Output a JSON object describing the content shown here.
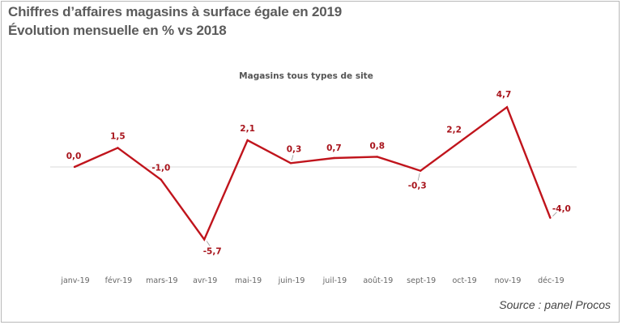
{
  "header": {
    "title": "Chiffres d’affaires magasins à surface égale en 2019",
    "subtitle": "Évolution mensuelle en % vs 2018"
  },
  "source": "Source : panel Procos",
  "colors": {
    "line": "#c0141c",
    "label": "#a8141c",
    "axis": "#d9d9d9",
    "tick_text": "#666666"
  },
  "chart_data": {
    "type": "line",
    "title": "Magasins tous types de site",
    "categories": [
      "janv-19",
      "févr-19",
      "mars-19",
      "avr-19",
      "mai-19",
      "juin-19",
      "juil-19",
      "août-19",
      "sept-19",
      "oct-19",
      "nov-19",
      "déc-19"
    ],
    "series": [
      {
        "values": [
          0.0,
          1.5,
          -1.0,
          -5.7,
          2.1,
          0.3,
          0.7,
          0.8,
          -0.3,
          2.2,
          4.7,
          -4.0
        ],
        "labels": [
          "0,0",
          "1,5",
          "-1,0",
          "-5,7",
          "2,1",
          "0,3",
          "0,7",
          "0,8",
          "-0,3",
          "2,2",
          "4,7",
          "-4,0"
        ]
      }
    ],
    "ylim": [
      -6.5,
      5.5
    ],
    "grid": false,
    "legend": "none"
  }
}
